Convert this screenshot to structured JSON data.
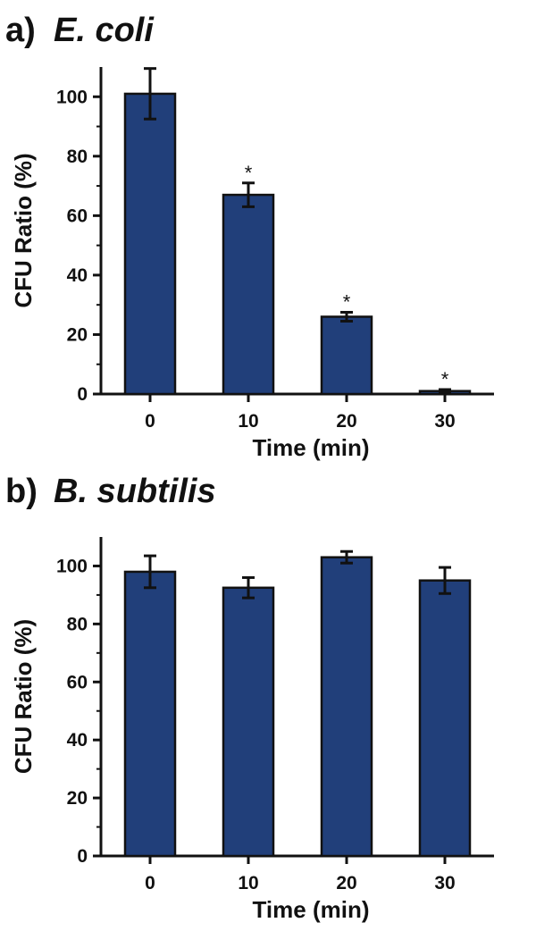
{
  "chart_data": [
    {
      "type": "bar",
      "panel_label": "a)",
      "title": "E. coli",
      "xlabel": "Time (min)",
      "ylabel": "CFU Ratio (%)",
      "categories": [
        "0",
        "10",
        "20",
        "30"
      ],
      "values": [
        101,
        67,
        26,
        1
      ],
      "errors": [
        8.5,
        4,
        1.5,
        0.5
      ],
      "annotations": [
        "",
        "*",
        "*",
        "*"
      ],
      "ylim": [
        0,
        110
      ],
      "yticks": [
        0,
        20,
        40,
        60,
        80,
        100
      ],
      "grid": false,
      "bar_color": "#213f7a"
    },
    {
      "type": "bar",
      "panel_label": "b)",
      "title": "B. subtilis",
      "xlabel": "Time (min)",
      "ylabel": "CFU Ratio (%)",
      "categories": [
        "0",
        "10",
        "20",
        "30"
      ],
      "values": [
        98,
        92.5,
        103,
        95
      ],
      "errors": [
        5.5,
        3.5,
        2,
        4.5
      ],
      "annotations": [
        "",
        "",
        "",
        ""
      ],
      "ylim": [
        0,
        110
      ],
      "yticks": [
        0,
        20,
        40,
        60,
        80,
        100
      ],
      "grid": false,
      "bar_color": "#213f7a"
    }
  ]
}
